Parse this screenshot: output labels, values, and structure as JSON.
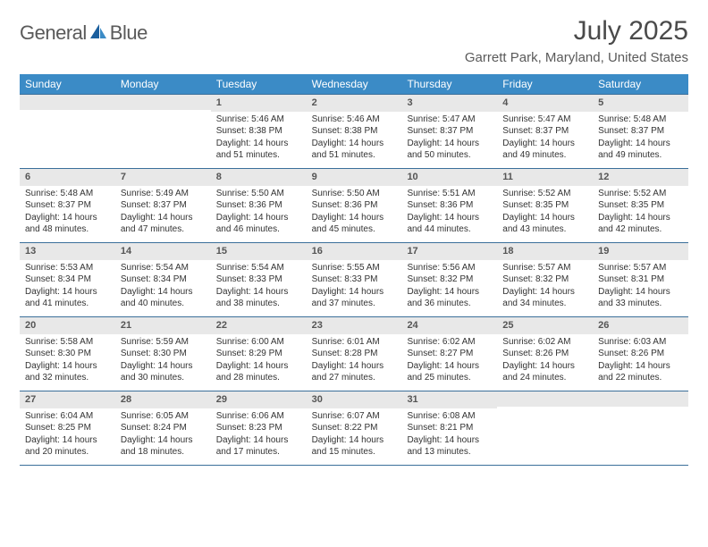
{
  "logo": {
    "general": "General",
    "blue": "Blue"
  },
  "title": "July 2025",
  "location": "Garrett Park, Maryland, United States",
  "colors": {
    "header_bg": "#3b8bc6",
    "header_text": "#ffffff",
    "daynum_bg": "#e8e8e8",
    "border": "#3b6f9a",
    "text": "#333333",
    "title_text": "#4a4a4a",
    "logo_blue": "#1b5f9e"
  },
  "weekdays": [
    "Sunday",
    "Monday",
    "Tuesday",
    "Wednesday",
    "Thursday",
    "Friday",
    "Saturday"
  ],
  "weeks": [
    [
      {
        "n": "",
        "sunrise": "",
        "sunset": "",
        "daylight": ""
      },
      {
        "n": "",
        "sunrise": "",
        "sunset": "",
        "daylight": ""
      },
      {
        "n": "1",
        "sunrise": "Sunrise: 5:46 AM",
        "sunset": "Sunset: 8:38 PM",
        "daylight": "Daylight: 14 hours and 51 minutes."
      },
      {
        "n": "2",
        "sunrise": "Sunrise: 5:46 AM",
        "sunset": "Sunset: 8:38 PM",
        "daylight": "Daylight: 14 hours and 51 minutes."
      },
      {
        "n": "3",
        "sunrise": "Sunrise: 5:47 AM",
        "sunset": "Sunset: 8:37 PM",
        "daylight": "Daylight: 14 hours and 50 minutes."
      },
      {
        "n": "4",
        "sunrise": "Sunrise: 5:47 AM",
        "sunset": "Sunset: 8:37 PM",
        "daylight": "Daylight: 14 hours and 49 minutes."
      },
      {
        "n": "5",
        "sunrise": "Sunrise: 5:48 AM",
        "sunset": "Sunset: 8:37 PM",
        "daylight": "Daylight: 14 hours and 49 minutes."
      }
    ],
    [
      {
        "n": "6",
        "sunrise": "Sunrise: 5:48 AM",
        "sunset": "Sunset: 8:37 PM",
        "daylight": "Daylight: 14 hours and 48 minutes."
      },
      {
        "n": "7",
        "sunrise": "Sunrise: 5:49 AM",
        "sunset": "Sunset: 8:37 PM",
        "daylight": "Daylight: 14 hours and 47 minutes."
      },
      {
        "n": "8",
        "sunrise": "Sunrise: 5:50 AM",
        "sunset": "Sunset: 8:36 PM",
        "daylight": "Daylight: 14 hours and 46 minutes."
      },
      {
        "n": "9",
        "sunrise": "Sunrise: 5:50 AM",
        "sunset": "Sunset: 8:36 PM",
        "daylight": "Daylight: 14 hours and 45 minutes."
      },
      {
        "n": "10",
        "sunrise": "Sunrise: 5:51 AM",
        "sunset": "Sunset: 8:36 PM",
        "daylight": "Daylight: 14 hours and 44 minutes."
      },
      {
        "n": "11",
        "sunrise": "Sunrise: 5:52 AM",
        "sunset": "Sunset: 8:35 PM",
        "daylight": "Daylight: 14 hours and 43 minutes."
      },
      {
        "n": "12",
        "sunrise": "Sunrise: 5:52 AM",
        "sunset": "Sunset: 8:35 PM",
        "daylight": "Daylight: 14 hours and 42 minutes."
      }
    ],
    [
      {
        "n": "13",
        "sunrise": "Sunrise: 5:53 AM",
        "sunset": "Sunset: 8:34 PM",
        "daylight": "Daylight: 14 hours and 41 minutes."
      },
      {
        "n": "14",
        "sunrise": "Sunrise: 5:54 AM",
        "sunset": "Sunset: 8:34 PM",
        "daylight": "Daylight: 14 hours and 40 minutes."
      },
      {
        "n": "15",
        "sunrise": "Sunrise: 5:54 AM",
        "sunset": "Sunset: 8:33 PM",
        "daylight": "Daylight: 14 hours and 38 minutes."
      },
      {
        "n": "16",
        "sunrise": "Sunrise: 5:55 AM",
        "sunset": "Sunset: 8:33 PM",
        "daylight": "Daylight: 14 hours and 37 minutes."
      },
      {
        "n": "17",
        "sunrise": "Sunrise: 5:56 AM",
        "sunset": "Sunset: 8:32 PM",
        "daylight": "Daylight: 14 hours and 36 minutes."
      },
      {
        "n": "18",
        "sunrise": "Sunrise: 5:57 AM",
        "sunset": "Sunset: 8:32 PM",
        "daylight": "Daylight: 14 hours and 34 minutes."
      },
      {
        "n": "19",
        "sunrise": "Sunrise: 5:57 AM",
        "sunset": "Sunset: 8:31 PM",
        "daylight": "Daylight: 14 hours and 33 minutes."
      }
    ],
    [
      {
        "n": "20",
        "sunrise": "Sunrise: 5:58 AM",
        "sunset": "Sunset: 8:30 PM",
        "daylight": "Daylight: 14 hours and 32 minutes."
      },
      {
        "n": "21",
        "sunrise": "Sunrise: 5:59 AM",
        "sunset": "Sunset: 8:30 PM",
        "daylight": "Daylight: 14 hours and 30 minutes."
      },
      {
        "n": "22",
        "sunrise": "Sunrise: 6:00 AM",
        "sunset": "Sunset: 8:29 PM",
        "daylight": "Daylight: 14 hours and 28 minutes."
      },
      {
        "n": "23",
        "sunrise": "Sunrise: 6:01 AM",
        "sunset": "Sunset: 8:28 PM",
        "daylight": "Daylight: 14 hours and 27 minutes."
      },
      {
        "n": "24",
        "sunrise": "Sunrise: 6:02 AM",
        "sunset": "Sunset: 8:27 PM",
        "daylight": "Daylight: 14 hours and 25 minutes."
      },
      {
        "n": "25",
        "sunrise": "Sunrise: 6:02 AM",
        "sunset": "Sunset: 8:26 PM",
        "daylight": "Daylight: 14 hours and 24 minutes."
      },
      {
        "n": "26",
        "sunrise": "Sunrise: 6:03 AM",
        "sunset": "Sunset: 8:26 PM",
        "daylight": "Daylight: 14 hours and 22 minutes."
      }
    ],
    [
      {
        "n": "27",
        "sunrise": "Sunrise: 6:04 AM",
        "sunset": "Sunset: 8:25 PM",
        "daylight": "Daylight: 14 hours and 20 minutes."
      },
      {
        "n": "28",
        "sunrise": "Sunrise: 6:05 AM",
        "sunset": "Sunset: 8:24 PM",
        "daylight": "Daylight: 14 hours and 18 minutes."
      },
      {
        "n": "29",
        "sunrise": "Sunrise: 6:06 AM",
        "sunset": "Sunset: 8:23 PM",
        "daylight": "Daylight: 14 hours and 17 minutes."
      },
      {
        "n": "30",
        "sunrise": "Sunrise: 6:07 AM",
        "sunset": "Sunset: 8:22 PM",
        "daylight": "Daylight: 14 hours and 15 minutes."
      },
      {
        "n": "31",
        "sunrise": "Sunrise: 6:08 AM",
        "sunset": "Sunset: 8:21 PM",
        "daylight": "Daylight: 14 hours and 13 minutes."
      },
      {
        "n": "",
        "sunrise": "",
        "sunset": "",
        "daylight": ""
      },
      {
        "n": "",
        "sunrise": "",
        "sunset": "",
        "daylight": ""
      }
    ]
  ]
}
